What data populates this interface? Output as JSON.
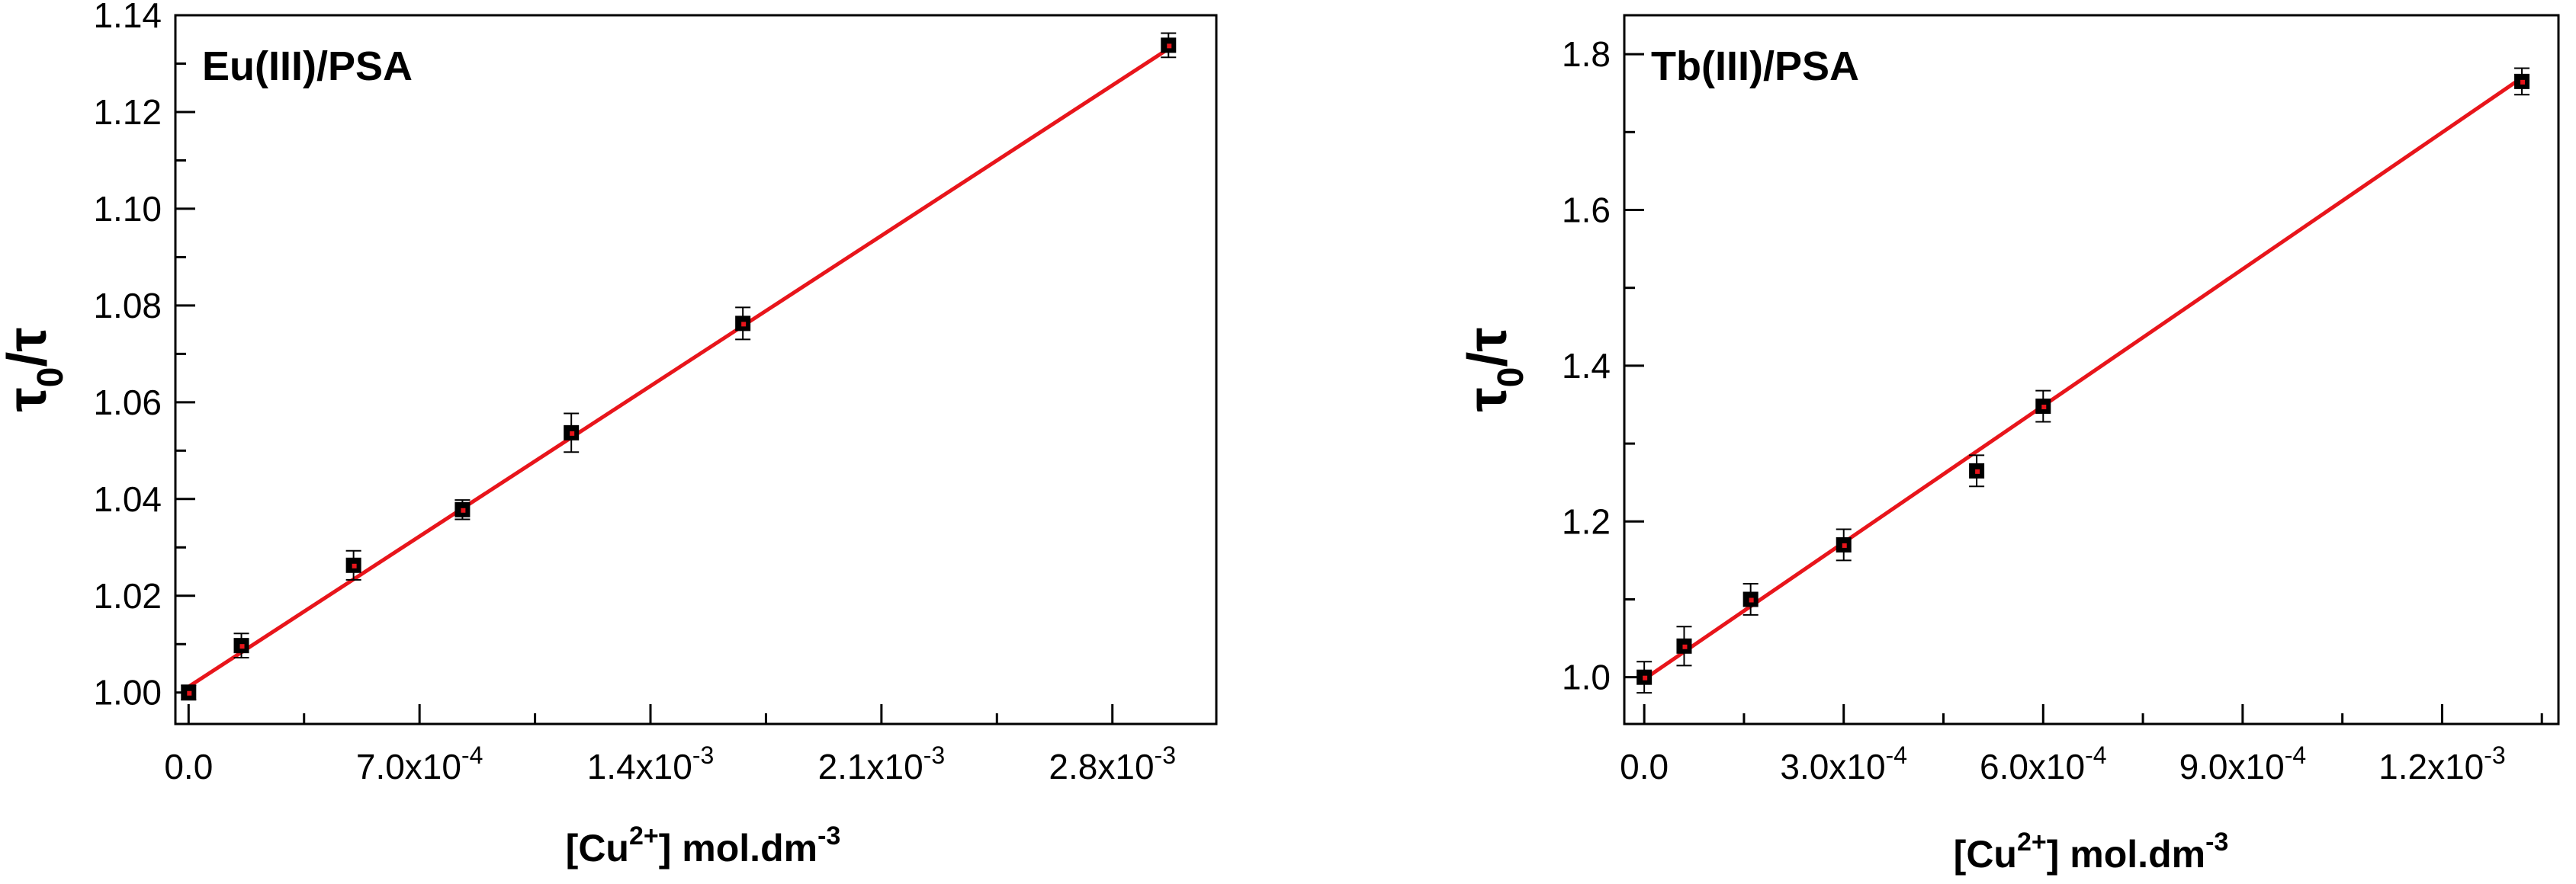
{
  "chart_data": [
    {
      "type": "scatter",
      "title": "Eu(III)/PSA",
      "xlabel": {
        "pre": "[Cu",
        "sup": "2+",
        "post": "] mol.dm",
        "sup2": "-3"
      },
      "ylabel": {
        "a": "τ",
        "sub": "0",
        "b": "/τ"
      },
      "xlim": [
        -4e-05,
        0.003115
      ],
      "ylim": [
        0.9935,
        1.14
      ],
      "xticks": [
        {
          "value": 0.0,
          "base": "0.0",
          "exp": ""
        },
        {
          "value": 0.0007,
          "base": "7.0x10",
          "exp": "-4"
        },
        {
          "value": 0.0014,
          "base": "1.4x10",
          "exp": "-3"
        },
        {
          "value": 0.0021,
          "base": "2.1x10",
          "exp": "-3"
        },
        {
          "value": 0.0028,
          "base": "2.8x10",
          "exp": "-3"
        }
      ],
      "x_minor_step": 0.00035,
      "yticks": [
        {
          "value": 1.0,
          "label": "1.00"
        },
        {
          "value": 1.02,
          "label": "1.02"
        },
        {
          "value": 1.04,
          "label": "1.04"
        },
        {
          "value": 1.06,
          "label": "1.06"
        },
        {
          "value": 1.08,
          "label": "1.08"
        },
        {
          "value": 1.1,
          "label": "1.10"
        },
        {
          "value": 1.12,
          "label": "1.12"
        },
        {
          "value": 1.14,
          "label": "1.14"
        }
      ],
      "y_minor_step": 0.01,
      "points": [
        {
          "x": 0.0,
          "y": 1.0,
          "err": 0.0015
        },
        {
          "x": 0.00016,
          "y": 1.0097,
          "err": 0.0025
        },
        {
          "x": 0.0005,
          "y": 1.0263,
          "err": 0.003
        },
        {
          "x": 0.00083,
          "y": 1.0378,
          "err": 0.002
        },
        {
          "x": 0.00116,
          "y": 1.0537,
          "err": 0.004
        },
        {
          "x": 0.00168,
          "y": 1.0763,
          "err": 0.0033
        },
        {
          "x": 0.00297,
          "y": 1.1338,
          "err": 0.0025
        }
      ],
      "fit": {
        "intercept": 1.0012,
        "slope": 44.4,
        "x_range": [
          0.0,
          0.00297
        ]
      },
      "marker_color": "#000000",
      "fit_color": "#e8151b"
    },
    {
      "type": "scatter",
      "title": "Tb(III)/PSA",
      "xlabel": {
        "pre": "[Cu",
        "sup": "2+",
        "post": "] mol.dm",
        "sup2": "-3"
      },
      "ylabel": {
        "a": "τ",
        "sub": "0",
        "b": "/τ"
      },
      "xlim": [
        -3e-05,
        0.001375
      ],
      "ylim": [
        0.94,
        1.85
      ],
      "xticks": [
        {
          "value": 0.0,
          "base": "0.0",
          "exp": ""
        },
        {
          "value": 0.0003,
          "base": "3.0x10",
          "exp": "-4"
        },
        {
          "value": 0.0006,
          "base": "6.0x10",
          "exp": "-4"
        },
        {
          "value": 0.0009,
          "base": "9.0x10",
          "exp": "-4"
        },
        {
          "value": 0.0012,
          "base": "1.2x10",
          "exp": "-3"
        }
      ],
      "x_minor_step": 0.00015,
      "yticks": [
        {
          "value": 1.0,
          "label": "1.0"
        },
        {
          "value": 1.2,
          "label": "1.2"
        },
        {
          "value": 1.4,
          "label": "1.4"
        },
        {
          "value": 1.6,
          "label": "1.6"
        },
        {
          "value": 1.8,
          "label": "1.8"
        }
      ],
      "y_minor_step": 0.1,
      "points": [
        {
          "x": 0.0,
          "y": 1.0,
          "err": 0.02
        },
        {
          "x": 6e-05,
          "y": 1.04,
          "err": 0.025
        },
        {
          "x": 0.00016,
          "y": 1.1,
          "err": 0.02
        },
        {
          "x": 0.0003,
          "y": 1.17,
          "err": 0.02
        },
        {
          "x": 0.0005,
          "y": 1.265,
          "err": 0.02
        },
        {
          "x": 0.0006,
          "y": 1.348,
          "err": 0.02
        },
        {
          "x": 0.00132,
          "y": 1.765,
          "err": 0.017
        }
      ],
      "fit": {
        "intercept": 0.9975,
        "slope": 585,
        "x_range": [
          0.0,
          0.00132
        ]
      },
      "marker_color": "#000000",
      "fit_color": "#e8151b"
    }
  ]
}
